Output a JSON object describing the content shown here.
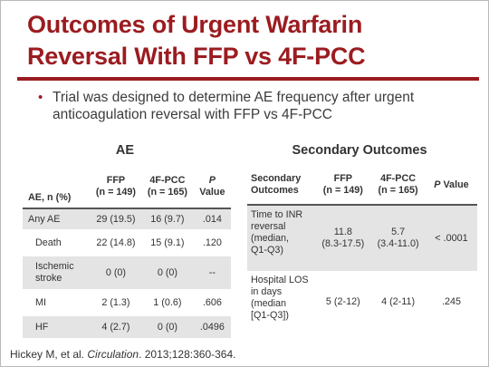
{
  "title": {
    "line1": "Outcomes of Urgent Warfarin",
    "line2": "Reversal With FFP vs 4F-PCC"
  },
  "bullet": {
    "marker": "•",
    "text": "Trial was designed to determine AE frequency after urgent anticoagulation reversal with FFP vs 4F-PCC"
  },
  "ae_section": {
    "title": "AE",
    "headers": [
      "AE, n (%)",
      "FFP\n(n = 149)",
      "4F-PCC\n(n = 165)",
      "P\nValue"
    ],
    "p_header_letter": "P",
    "p_header_rest": "Value",
    "rows": [
      {
        "label": "Any AE",
        "ffp": "29 (19.5)",
        "pcc": "16 (9.7)",
        "p": ".014"
      },
      {
        "label": "Death",
        "ffp": "22 (14.8)",
        "pcc": "15 (9.1)",
        "p": ".120"
      },
      {
        "label": "Ischemic\nstroke",
        "ffp": "0 (0)",
        "pcc": "0 (0)",
        "p": "--"
      },
      {
        "label": "MI",
        "ffp": "2 (1.3)",
        "pcc": "1 (0.6)",
        "p": ".606"
      },
      {
        "label": "HF",
        "ffp": "4 (2.7)",
        "pcc": "0 (0)",
        "p": ".0496"
      }
    ]
  },
  "secondary_section": {
    "title": "Secondary Outcomes",
    "headers": [
      "Secondary\nOutcomes",
      "FFP\n(n = 149)",
      "4F-PCC\n(n = 165)",
      "P Value"
    ],
    "p_header_letter": "P",
    "p_header_rest": " Value",
    "rows": [
      {
        "label": "Time to INR\nreversal\n(median,\nQ1-Q3)",
        "ffp": "11.8\n(8.3-17.5)",
        "pcc": "5.7\n(3.4-11.0)",
        "p": "< .0001"
      },
      {
        "label": "Hospital LOS\nin days\n(median\n[Q1-Q3])",
        "ffp": "5 (2-12)",
        "pcc": "4 (2-11)",
        "p": ".245"
      }
    ]
  },
  "citation": {
    "prefix": "Hickey M, et al. ",
    "journal": "Circulation",
    "suffix": ". 2013;128:360-364."
  }
}
